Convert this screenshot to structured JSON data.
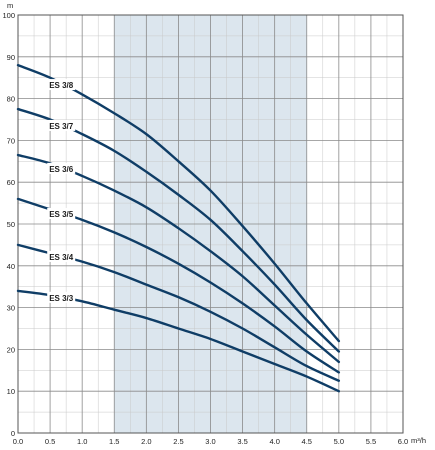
{
  "chart_data": {
    "type": "line",
    "xlabel": "m³/h",
    "ylabel": "m",
    "xlim": [
      0,
      6.0
    ],
    "ylim": [
      0,
      100
    ],
    "x_ticks": [
      "0.0",
      "0.5",
      "1.0",
      "1.5",
      "2.0",
      "2.5",
      "3.0",
      "3.5",
      "4.0",
      "4.5",
      "5.0",
      "5.5",
      "6.0"
    ],
    "y_ticks": [
      "0",
      "10",
      "20",
      "30",
      "40",
      "50",
      "60",
      "70",
      "80",
      "90",
      "100"
    ],
    "grid": true,
    "highlight_band": {
      "x_from": 1.5,
      "x_to": 4.5,
      "color": "#dce6ee"
    },
    "curve_color": "#0f3d66",
    "series": [
      {
        "name": "ES 3/8",
        "points": [
          [
            0,
            88
          ],
          [
            0.5,
            85
          ],
          [
            1.0,
            81
          ],
          [
            1.5,
            76.5
          ],
          [
            2.0,
            71.5
          ],
          [
            2.5,
            65
          ],
          [
            3.0,
            58
          ],
          [
            3.5,
            49.5
          ],
          [
            4.0,
            40.5
          ],
          [
            4.5,
            31
          ],
          [
            5.0,
            22
          ]
        ]
      },
      {
        "name": "ES 3/7",
        "points": [
          [
            0,
            77.5
          ],
          [
            0.5,
            75
          ],
          [
            1.0,
            71.5
          ],
          [
            1.5,
            67.5
          ],
          [
            2.0,
            62.5
          ],
          [
            2.5,
            57
          ],
          [
            3.0,
            51
          ],
          [
            3.5,
            43.5
          ],
          [
            4.0,
            35.5
          ],
          [
            4.5,
            27
          ],
          [
            5.0,
            19.5
          ]
        ]
      },
      {
        "name": "ES 3/6",
        "points": [
          [
            0,
            66.5
          ],
          [
            0.5,
            64.5
          ],
          [
            1.0,
            61.5
          ],
          [
            1.5,
            58
          ],
          [
            2.0,
            54
          ],
          [
            2.5,
            49
          ],
          [
            3.0,
            43.5
          ],
          [
            3.5,
            37.5
          ],
          [
            4.0,
            30.5
          ],
          [
            4.5,
            23.5
          ],
          [
            5.0,
            17
          ]
        ]
      },
      {
        "name": "ES 3/5",
        "points": [
          [
            0,
            56
          ],
          [
            0.5,
            53.5
          ],
          [
            1.0,
            51
          ],
          [
            1.5,
            48
          ],
          [
            2.0,
            44.5
          ],
          [
            2.5,
            40.5
          ],
          [
            3.0,
            36
          ],
          [
            3.5,
            31
          ],
          [
            4.0,
            25.5
          ],
          [
            4.5,
            19.5
          ],
          [
            5.0,
            14.5
          ]
        ]
      },
      {
        "name": "ES 3/4",
        "points": [
          [
            0,
            45
          ],
          [
            0.5,
            43
          ],
          [
            1.0,
            41
          ],
          [
            1.5,
            38.5
          ],
          [
            2.0,
            35.5
          ],
          [
            2.5,
            32.5
          ],
          [
            3.0,
            29
          ],
          [
            3.5,
            25
          ],
          [
            4.0,
            20.5
          ],
          [
            4.5,
            16
          ],
          [
            5.0,
            12.5
          ]
        ]
      },
      {
        "name": "ES 3/3",
        "points": [
          [
            0,
            34
          ],
          [
            0.5,
            33
          ],
          [
            1.0,
            31.5
          ],
          [
            1.5,
            29.5
          ],
          [
            2.0,
            27.5
          ],
          [
            2.5,
            25
          ],
          [
            3.0,
            22.5
          ],
          [
            3.5,
            19.5
          ],
          [
            4.0,
            16.5
          ],
          [
            4.5,
            13.5
          ],
          [
            5.0,
            10
          ]
        ]
      }
    ]
  }
}
